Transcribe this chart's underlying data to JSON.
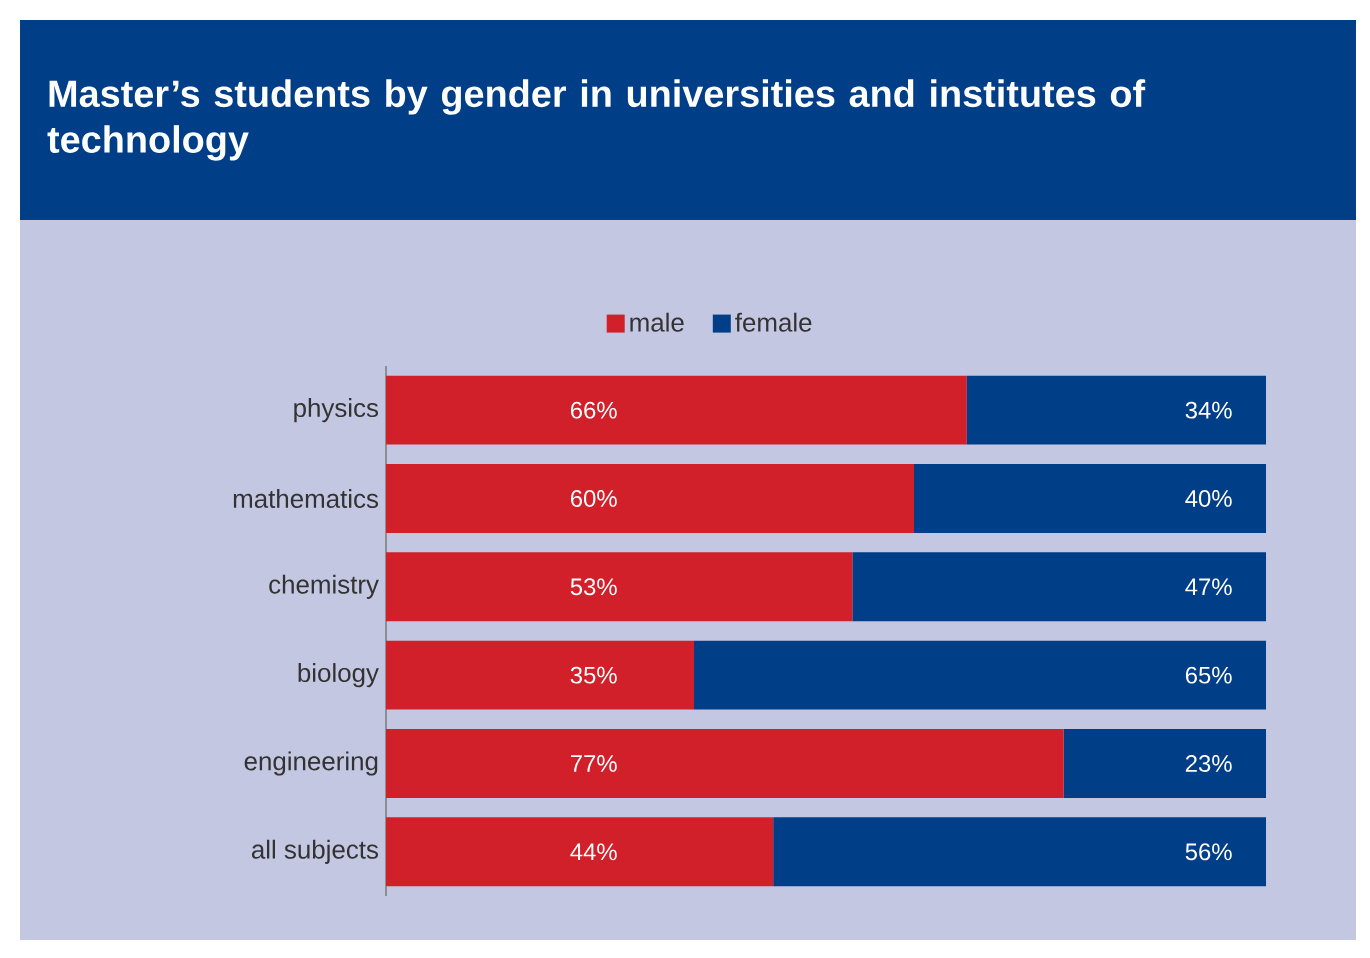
{
  "chart_data": {
    "type": "bar",
    "orientation": "horizontal",
    "stacked": true,
    "legend": "top",
    "title": "Master’s students by gender in universities and institutes of technology",
    "categories": [
      "physics",
      "mathematics",
      "chemistry",
      "biology",
      "engineering",
      "all subjects"
    ],
    "series": [
      {
        "name": "male",
        "color": "#d2202a",
        "values": [
          66,
          60,
          53,
          35,
          77,
          44
        ],
        "value_labels": [
          "66%",
          "60%",
          "53%",
          "35%",
          "77%",
          "44%"
        ]
      },
      {
        "name": "female",
        "color": "#003f87",
        "values": [
          34,
          40,
          47,
          65,
          23,
          56
        ],
        "value_labels": [
          "34%",
          "40%",
          "47%",
          "65%",
          "23%",
          "56%"
        ]
      }
    ]
  }
}
